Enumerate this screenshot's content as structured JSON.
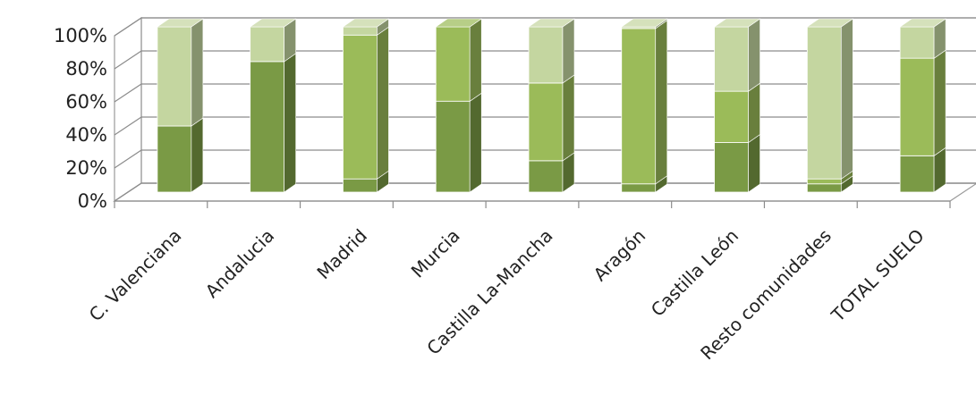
{
  "chart_data": {
    "type": "bar",
    "stacked": "percent",
    "three_d": true,
    "categories": [
      "C. Valenciana",
      "Andalucia",
      "Madrid",
      "Murcia",
      "Castilla La-Mancha",
      "Aragón",
      "Castilla León",
      "Resto comunidades",
      "TOTAL SUELO"
    ],
    "series": [
      {
        "values": [
          40,
          79,
          8,
          55,
          19,
          5,
          30,
          5,
          22
        ],
        "color": "#7a9a45"
      },
      {
        "values": [
          0,
          0,
          87,
          45,
          47,
          94,
          31,
          3,
          59
        ],
        "color": "#9bbb59"
      },
      {
        "values": [
          60,
          21,
          5,
          0,
          34,
          1,
          39,
          92,
          19
        ],
        "color": "#c4d6a0"
      }
    ],
    "yticks": [
      "0%",
      "20%",
      "40%",
      "60%",
      "80%",
      "100%"
    ],
    "ylim": [
      0,
      100
    ],
    "grid": true,
    "legend": "none"
  }
}
